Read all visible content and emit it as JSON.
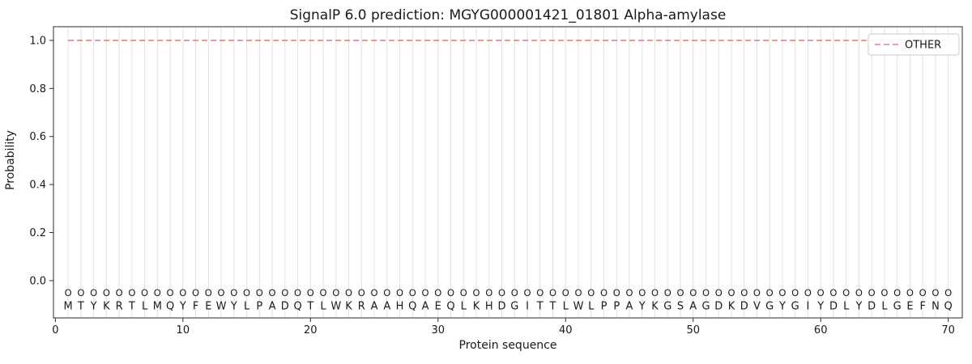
{
  "chart_data": {
    "type": "line",
    "title": "SignalP 6.0 prediction: MGYG000001421_01801 Alpha-amylase",
    "xlabel": "Protein sequence",
    "ylabel": "Probability",
    "xlim": [
      -0.15,
      71.1
    ],
    "ylim": [
      -0.155,
      1.057
    ],
    "xticks": [
      0,
      10,
      20,
      30,
      40,
      50,
      60,
      70
    ],
    "yticks": [
      0.0,
      0.2,
      0.4,
      0.6,
      0.8,
      1.0
    ],
    "grid": "vertical line per residue",
    "legend": {
      "position": "upper-right",
      "entries": [
        {
          "label": "OTHER",
          "color": "#f47c7c",
          "linestyle": "dashed"
        }
      ]
    },
    "series": [
      {
        "name": "OTHER",
        "color": "#f47c7c",
        "linestyle": "dashed",
        "y_constant": 1.0,
        "x_start": 1,
        "x_end": 70
      }
    ],
    "sequence": "MTYKRTLMQYFEWYLPADQTLWKRAAHQAEQLKHDGITTLWLPPAYKGSAGDKDVGYGIYDLYDLGEFNQ",
    "residue_marks": {
      "label": "O",
      "y": -0.05,
      "color": "#a6a6a6"
    },
    "sequence_y": -0.105,
    "colors": {
      "grid": "#e2e2e2",
      "spine": "#2b2b2b",
      "tick": "#2b2b2b",
      "sequence_letter": "#1a1a1a",
      "legend_border": "#cccccc",
      "background": "#ffffff"
    }
  }
}
